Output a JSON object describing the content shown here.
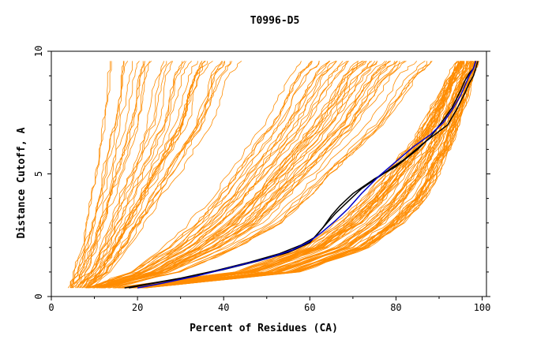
{
  "chart_data": {
    "type": "line",
    "title": "T0996-D5",
    "xlabel": "Percent of Residues (CA)",
    "ylabel": "Distance Cutoff, A",
    "xlim": [
      0,
      101
    ],
    "ylim": [
      0,
      10
    ],
    "x_ticks": [
      "0",
      "20",
      "40",
      "60",
      "80",
      "100"
    ],
    "y_ticks": [
      "0",
      "5",
      "10"
    ],
    "grid": false,
    "legend": "none",
    "colors": {
      "background_models": "#ff8c00",
      "highlight_primary": "#000000",
      "highlight_secondary": "#0000cc"
    },
    "series": [
      {
        "role": "highlight",
        "color": "#000000",
        "x": [
          17,
          22,
          30,
          38,
          46,
          53,
          58,
          61,
          63,
          65,
          67,
          70,
          75,
          80,
          85,
          88,
          91,
          93,
          95,
          96,
          97,
          98,
          98.5
        ],
        "y": [
          0.35,
          0.5,
          0.75,
          1.05,
          1.4,
          1.75,
          2.1,
          2.4,
          2.8,
          3.3,
          3.7,
          4.2,
          4.8,
          5.3,
          6.0,
          6.5,
          7.2,
          7.7,
          8.4,
          8.8,
          9.1,
          9.3,
          9.6
        ]
      },
      {
        "role": "highlight",
        "color": "#000000",
        "x": [
          18,
          24,
          32,
          40,
          48,
          55,
          60,
          62,
          64,
          66,
          69,
          72,
          77,
          82,
          86,
          89,
          92,
          94,
          96,
          97,
          98,
          98.5,
          99
        ],
        "y": [
          0.35,
          0.55,
          0.8,
          1.1,
          1.45,
          1.8,
          2.2,
          2.6,
          3.0,
          3.4,
          3.9,
          4.4,
          5.0,
          5.6,
          6.2,
          6.6,
          7.0,
          7.6,
          8.3,
          8.7,
          9.0,
          9.3,
          9.6
        ]
      },
      {
        "role": "highlight",
        "color": "#0000cc",
        "x": [
          20,
          26,
          34,
          42,
          50,
          56,
          60,
          63,
          66,
          69,
          72,
          76,
          80,
          84,
          88,
          91,
          93,
          95,
          96,
          97,
          98,
          98.5
        ],
        "y": [
          0.35,
          0.55,
          0.85,
          1.2,
          1.55,
          1.9,
          2.25,
          2.65,
          3.1,
          3.6,
          4.2,
          4.9,
          5.5,
          6.1,
          6.6,
          7.1,
          7.6,
          8.2,
          8.6,
          9.0,
          9.3,
          9.6
        ]
      }
    ],
    "background_models": {
      "count": 140,
      "color": "#ff8c00",
      "cutoffs": [
        0.35,
        1,
        2,
        3,
        4,
        5,
        6,
        7,
        8,
        9,
        9.6
      ],
      "families": [
        {
          "name": "steep-left",
          "count": 35,
          "x_at_cutoffs_min": [
            4,
            5,
            7,
            8,
            9,
            10,
            11,
            12,
            12.5,
            13,
            13.5
          ],
          "x_at_cutoffs_max": [
            9,
            14,
            18,
            22,
            26,
            30,
            34,
            38,
            40,
            42,
            45
          ]
        },
        {
          "name": "middle",
          "count": 45,
          "x_at_cutoffs_min": [
            8,
            18,
            26,
            32,
            37,
            41,
            45,
            49,
            52,
            55,
            58
          ],
          "x_at_cutoffs_max": [
            14,
            30,
            44,
            54,
            60,
            66,
            72,
            78,
            82,
            86,
            90
          ]
        },
        {
          "name": "right",
          "count": 60,
          "x_at_cutoffs_min": [
            14,
            42,
            58,
            66,
            72,
            77,
            82,
            86,
            89,
            92,
            94
          ],
          "x_at_cutoffs_max": [
            22,
            58,
            74,
            82,
            87,
            90,
            92.5,
            94.5,
            96.5,
            98,
            99
          ]
        }
      ]
    }
  }
}
